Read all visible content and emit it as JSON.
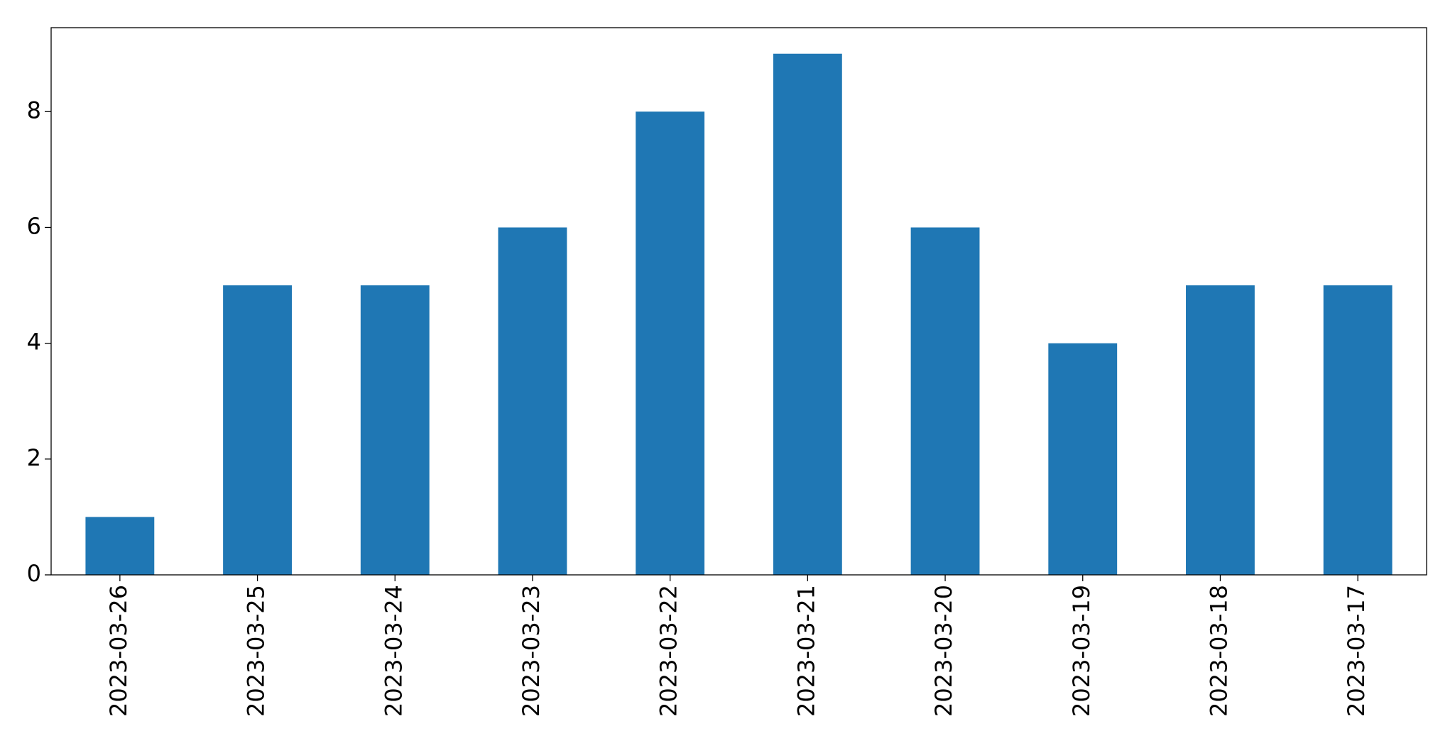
{
  "chart_data": {
    "type": "bar",
    "categories": [
      "2023-03-26",
      "2023-03-25",
      "2023-03-24",
      "2023-03-23",
      "2023-03-22",
      "2023-03-21",
      "2023-03-20",
      "2023-03-19",
      "2023-03-18",
      "2023-03-17"
    ],
    "values": [
      1,
      5,
      5,
      6,
      8,
      9,
      6,
      4,
      5,
      5
    ],
    "color": "#1f77b4",
    "ylim": [
      0,
      9.45
    ],
    "yticks": [
      0,
      2,
      4,
      6,
      8
    ],
    "grid": false
  }
}
